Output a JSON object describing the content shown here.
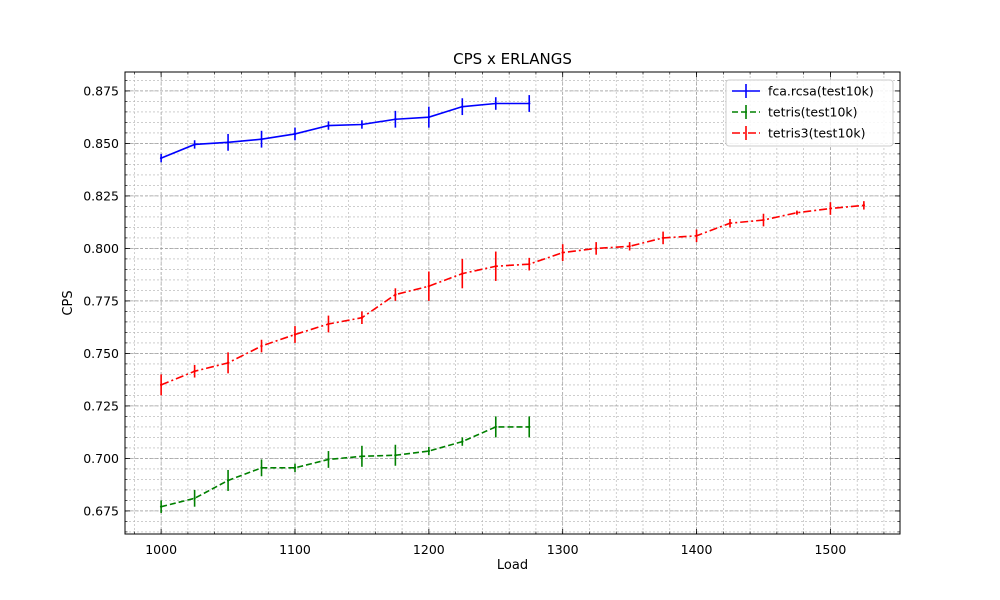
{
  "chart_data": {
    "type": "line",
    "title": "CPS x ERLANGS",
    "xlabel": "Load",
    "ylabel": "CPS",
    "xlim": [
      973,
      1552
    ],
    "ylim": [
      0.664,
      0.884
    ],
    "x_ticks": [
      1000,
      1100,
      1200,
      1300,
      1400,
      1500
    ],
    "x_tick_labels": [
      "1000",
      "1100",
      "1200",
      "1300",
      "1400",
      "1500"
    ],
    "y_ticks": [
      0.675,
      0.7,
      0.725,
      0.75,
      0.775,
      0.8,
      0.825,
      0.85,
      0.875
    ],
    "y_tick_labels": [
      "0.675",
      "0.700",
      "0.725",
      "0.750",
      "0.775",
      "0.800",
      "0.825",
      "0.850",
      "0.875"
    ],
    "grid": true,
    "legend_position": "top-right",
    "series": [
      {
        "name": "fca.rcsa(test10k)",
        "color": "#0000ff",
        "dash": "solid",
        "x": [
          1000,
          1025,
          1050,
          1075,
          1100,
          1125,
          1150,
          1175,
          1200,
          1225,
          1250,
          1275
        ],
        "values": [
          0.843,
          0.8495,
          0.8505,
          0.852,
          0.8545,
          0.8585,
          0.859,
          0.8615,
          0.8625,
          0.8675,
          0.869,
          0.869
        ],
        "errors": [
          0.002,
          0.002,
          0.004,
          0.004,
          0.003,
          0.002,
          0.002,
          0.004,
          0.005,
          0.004,
          0.003,
          0.004
        ]
      },
      {
        "name": "tetris(test10k)",
        "color": "#008000",
        "dash": "dashed",
        "x": [
          1000,
          1025,
          1050,
          1075,
          1100,
          1125,
          1150,
          1175,
          1200,
          1225,
          1250,
          1275
        ],
        "values": [
          0.677,
          0.681,
          0.6895,
          0.6955,
          0.6955,
          0.6995,
          0.701,
          0.7015,
          0.7035,
          0.708,
          0.715,
          0.715
        ],
        "errors": [
          0.003,
          0.004,
          0.005,
          0.004,
          0.002,
          0.004,
          0.005,
          0.005,
          0.002,
          0.002,
          0.005,
          0.005
        ]
      },
      {
        "name": "tetris3(test10k)",
        "color": "#ff0000",
        "dash": "dashdot",
        "x": [
          1000,
          1025,
          1050,
          1075,
          1100,
          1125,
          1150,
          1175,
          1200,
          1225,
          1250,
          1275,
          1300,
          1325,
          1350,
          1375,
          1400,
          1425,
          1450,
          1475,
          1500,
          1525
        ],
        "values": [
          0.735,
          0.7415,
          0.7455,
          0.7535,
          0.759,
          0.764,
          0.767,
          0.778,
          0.782,
          0.788,
          0.7915,
          0.7925,
          0.798,
          0.8,
          0.801,
          0.805,
          0.806,
          0.812,
          0.8135,
          0.817,
          0.819,
          0.8205
        ],
        "errors": [
          0.005,
          0.003,
          0.005,
          0.003,
          0.004,
          0.004,
          0.003,
          0.003,
          0.007,
          0.007,
          0.007,
          0.003,
          0.004,
          0.003,
          0.002,
          0.003,
          0.003,
          0.002,
          0.003,
          0.001,
          0.003,
          0.002
        ]
      }
    ]
  }
}
